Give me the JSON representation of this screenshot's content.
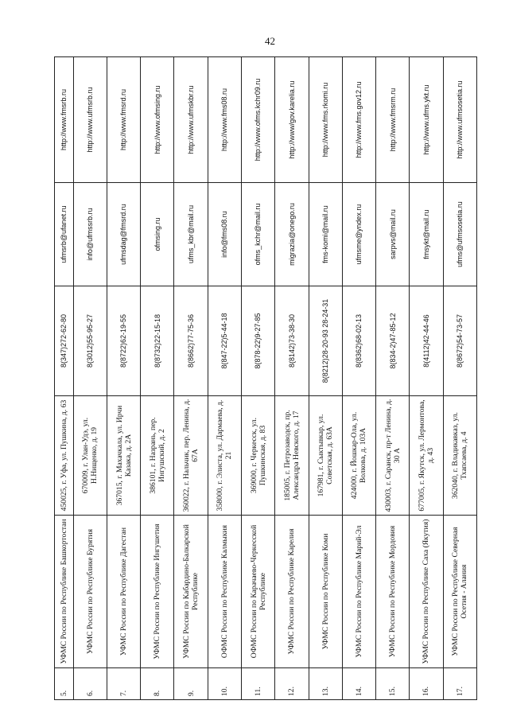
{
  "page_number": "42",
  "rows": [
    {
      "num": "5.",
      "name": "УФМС России по Республике Башкортостан",
      "address": "450025, г. Уфа, ул. Пушкина, д. 63",
      "phone": "8(347)272-62-80",
      "email": "ufmsrb@ufanet.ru",
      "website": "http://www.fmsrb.ru"
    },
    {
      "num": "6.",
      "name": "УФМС России по Республике Бурятия",
      "address": "670009, г. Улан-Удэ, ул. Н.Нищенко, д. 19",
      "phone": "8(3012)55-95-27",
      "email": "info@ufmssrb.ru",
      "website": "http://www.ufmsrb.ru"
    },
    {
      "num": "7.",
      "name": "УФМС России по Республике Дагестан",
      "address": "367015, г. Махачкала, ул. Ирчи Казака, д. 2А",
      "phone": "8(8722)62-19-55",
      "email": "ufmsdag@fmsrd.ru",
      "website": "http://www.fmsrd.ru"
    },
    {
      "num": "8.",
      "name": "УФМС России по Республике Ингушетия",
      "address": "386101, г. Назрань, пер. Ингушский, д. 2",
      "phone": "8(8732)22-15-18",
      "email": "ofmsing.ru",
      "website": "http://www.ofmsing.ru"
    },
    {
      "num": "9.",
      "name": "УФМС России по Кабардино-Балкарской Республике",
      "address": "360022, г. Нальчик, пер. Ленина, д. 67А",
      "phone": "8(8662)77-75-36",
      "email": "ufms_kbr@mail.ru",
      "website": "http://www.ufmskbr.ru"
    },
    {
      "num": "10.",
      "name": "ОФМС России по Республике Калмыкия",
      "address": "358000, г. Элиста, ул. Дармаева, д. 21",
      "phone": "8(847-22)5-44-18",
      "email": "info@fms08.ru",
      "website": "http://www.fms08.ru"
    },
    {
      "num": "11.",
      "name": "ОФМС России по Карачаево-Черкесской Республике",
      "address": "369000, г. Черкесск, ул. Пушкинская, д. 83",
      "phone": "8(878-22)9-27-85",
      "email": "ofms_kchr@mail.ru",
      "website": "http://www.ofms.kchr09.ru"
    },
    {
      "num": "12.",
      "name": "УФМС России по Республике Карелия",
      "address": "185005, г. Петрозаводск, пр. Александра Невского, д. 17",
      "phone": "8(8142)73-38-30",
      "email": "migrazia@onego.ru",
      "website": "http://www/gov.karelia.ru"
    },
    {
      "num": "13.",
      "name": "УФМС России по Республике Коми",
      "address": "167981, г. Сыктывкар, ул. Советская, д. 63А",
      "phone": "8(8212)28-20-93 28-24-31",
      "email": "fms-komi@mail.ru",
      "website": "http://www.fms.rkomi.ru"
    },
    {
      "num": "14.",
      "name": "УФМС России по Республике Марий-Эл",
      "address": "424000, г. Йошкар-Ола, ул. Волкова, д. 103А",
      "phone": "8(8362)68-02-13",
      "email": "ufmsme@yndex.ru",
      "website": "http://www.fms.gov12.ru"
    },
    {
      "num": "15.",
      "name": "УФМС России по Республике Мордовия",
      "address": "430003, г. Саранск, пр-т Ленина, д. 30 А",
      "phone": "8(834-2)47-85-12",
      "email": "sarpvs@mail.ru",
      "website": "http://www.fmsrm.ru"
    },
    {
      "num": "16.",
      "name": "УФМС России по Республике Саха (Якутия)",
      "address": "677005, г. Якутск, ул. Лермонтова, д. 43",
      "phone": "8(4112)42-44-46",
      "email": "fmsykt@mail.ru",
      "website": "http://www.ufms.ykt.ru"
    },
    {
      "num": "17.",
      "name": "УФМС России по Республике Северная Осетия - Алания",
      "address": "362040, г. Владикавказ, ул. Тхапсаева, д. 4",
      "phone": "8(8672)54-73-57",
      "email": "ufms@ufmsosetia.ru",
      "website": "http://www.ufmsosetia.ru"
    }
  ]
}
